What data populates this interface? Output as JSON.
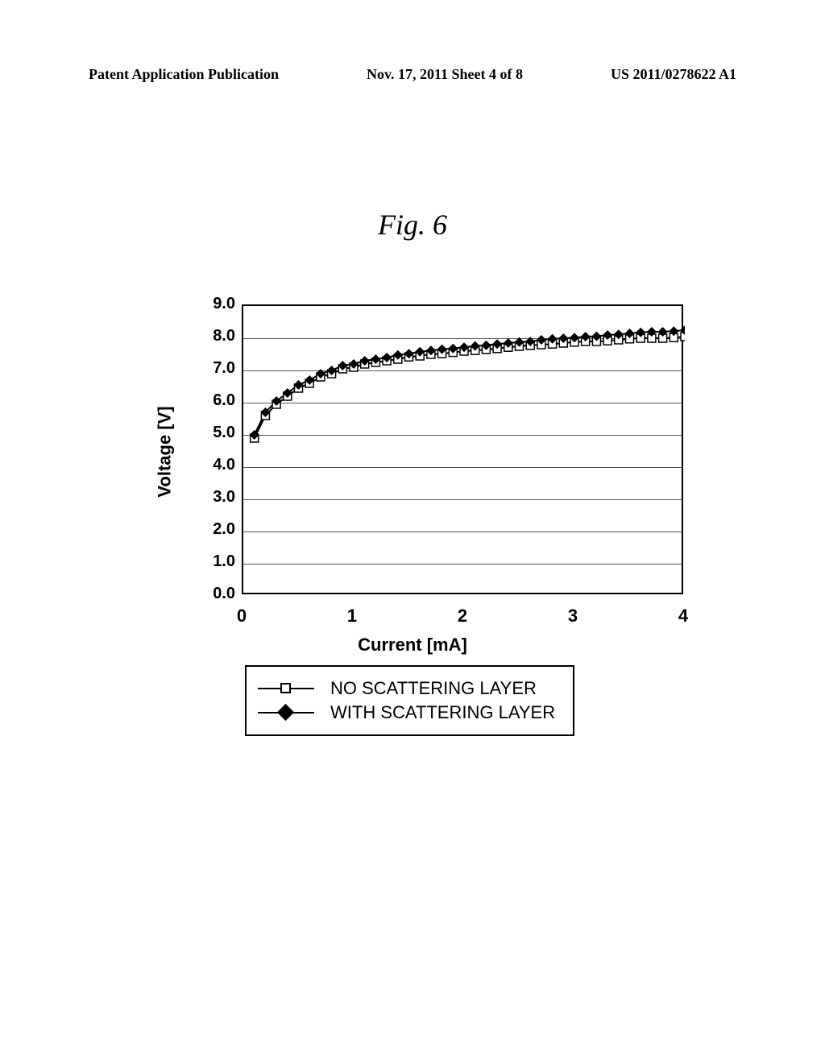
{
  "header": {
    "left": "Patent Application Publication",
    "mid": "Nov. 17, 2011  Sheet 4 of 8",
    "right": "US 2011/0278622 A1"
  },
  "figure_title": "Fig. 6",
  "chart": {
    "type": "line",
    "ylabel": "Voltage [V]",
    "xlabel": "Current [mA]",
    "ylim": [
      0,
      9
    ],
    "xlim": [
      0,
      4
    ],
    "yticks": [
      {
        "v": 0.0,
        "label": "0.0"
      },
      {
        "v": 1.0,
        "label": "1.0"
      },
      {
        "v": 2.0,
        "label": "2.0"
      },
      {
        "v": 3.0,
        "label": "3.0"
      },
      {
        "v": 4.0,
        "label": "4.0"
      },
      {
        "v": 5.0,
        "label": "5.0"
      },
      {
        "v": 6.0,
        "label": "6.0"
      },
      {
        "v": 7.0,
        "label": "7.0"
      },
      {
        "v": 8.0,
        "label": "8.0"
      },
      {
        "v": 9.0,
        "label": "9.0"
      }
    ],
    "xticks": [
      {
        "v": 0,
        "label": "0"
      },
      {
        "v": 1,
        "label": "1"
      },
      {
        "v": 2,
        "label": "2"
      },
      {
        "v": 3,
        "label": "3"
      },
      {
        "v": 4,
        "label": "4"
      }
    ],
    "grid_color": "#555555",
    "line_color": "#000000",
    "square_fill": "#ffffff",
    "square_stroke": "#000000",
    "diamond_fill": "#000000",
    "legend": [
      {
        "marker": "square",
        "label": "NO SCATTERING LAYER"
      },
      {
        "marker": "diamond",
        "label": "WITH SCATTERING LAYER"
      }
    ],
    "series_no_scatter": {
      "x": [
        0.1,
        0.2,
        0.3,
        0.4,
        0.5,
        0.6,
        0.7,
        0.8,
        0.9,
        1.0,
        1.1,
        1.2,
        1.3,
        1.4,
        1.5,
        1.6,
        1.7,
        1.8,
        1.9,
        2.0,
        2.1,
        2.2,
        2.3,
        2.4,
        2.5,
        2.6,
        2.7,
        2.8,
        2.9,
        3.0,
        3.1,
        3.2,
        3.3,
        3.4,
        3.5,
        3.6,
        3.7,
        3.8,
        3.9,
        4.0
      ],
      "y": [
        4.9,
        5.6,
        5.95,
        6.2,
        6.45,
        6.6,
        6.8,
        6.9,
        7.05,
        7.1,
        7.2,
        7.25,
        7.3,
        7.35,
        7.42,
        7.45,
        7.5,
        7.52,
        7.56,
        7.6,
        7.62,
        7.65,
        7.68,
        7.72,
        7.75,
        7.78,
        7.8,
        7.82,
        7.85,
        7.88,
        7.9,
        7.9,
        7.92,
        7.95,
        7.98,
        8.0,
        8.0,
        8.0,
        8.02,
        8.05
      ]
    },
    "series_with_scatter": {
      "x": [
        0.1,
        0.2,
        0.3,
        0.4,
        0.5,
        0.6,
        0.7,
        0.8,
        0.9,
        1.0,
        1.1,
        1.2,
        1.3,
        1.4,
        1.5,
        1.6,
        1.7,
        1.8,
        1.9,
        2.0,
        2.1,
        2.2,
        2.3,
        2.4,
        2.5,
        2.6,
        2.7,
        2.8,
        2.9,
        3.0,
        3.1,
        3.2,
        3.3,
        3.4,
        3.5,
        3.6,
        3.7,
        3.8,
        3.9,
        4.0
      ],
      "y": [
        5.0,
        5.7,
        6.05,
        6.3,
        6.55,
        6.7,
        6.9,
        7.0,
        7.15,
        7.2,
        7.3,
        7.35,
        7.4,
        7.48,
        7.52,
        7.58,
        7.62,
        7.66,
        7.68,
        7.72,
        7.76,
        7.78,
        7.82,
        7.85,
        7.88,
        7.9,
        7.95,
        7.98,
        8.0,
        8.02,
        8.05,
        8.06,
        8.1,
        8.12,
        8.15,
        8.18,
        8.2,
        8.2,
        8.22,
        8.25
      ]
    }
  }
}
